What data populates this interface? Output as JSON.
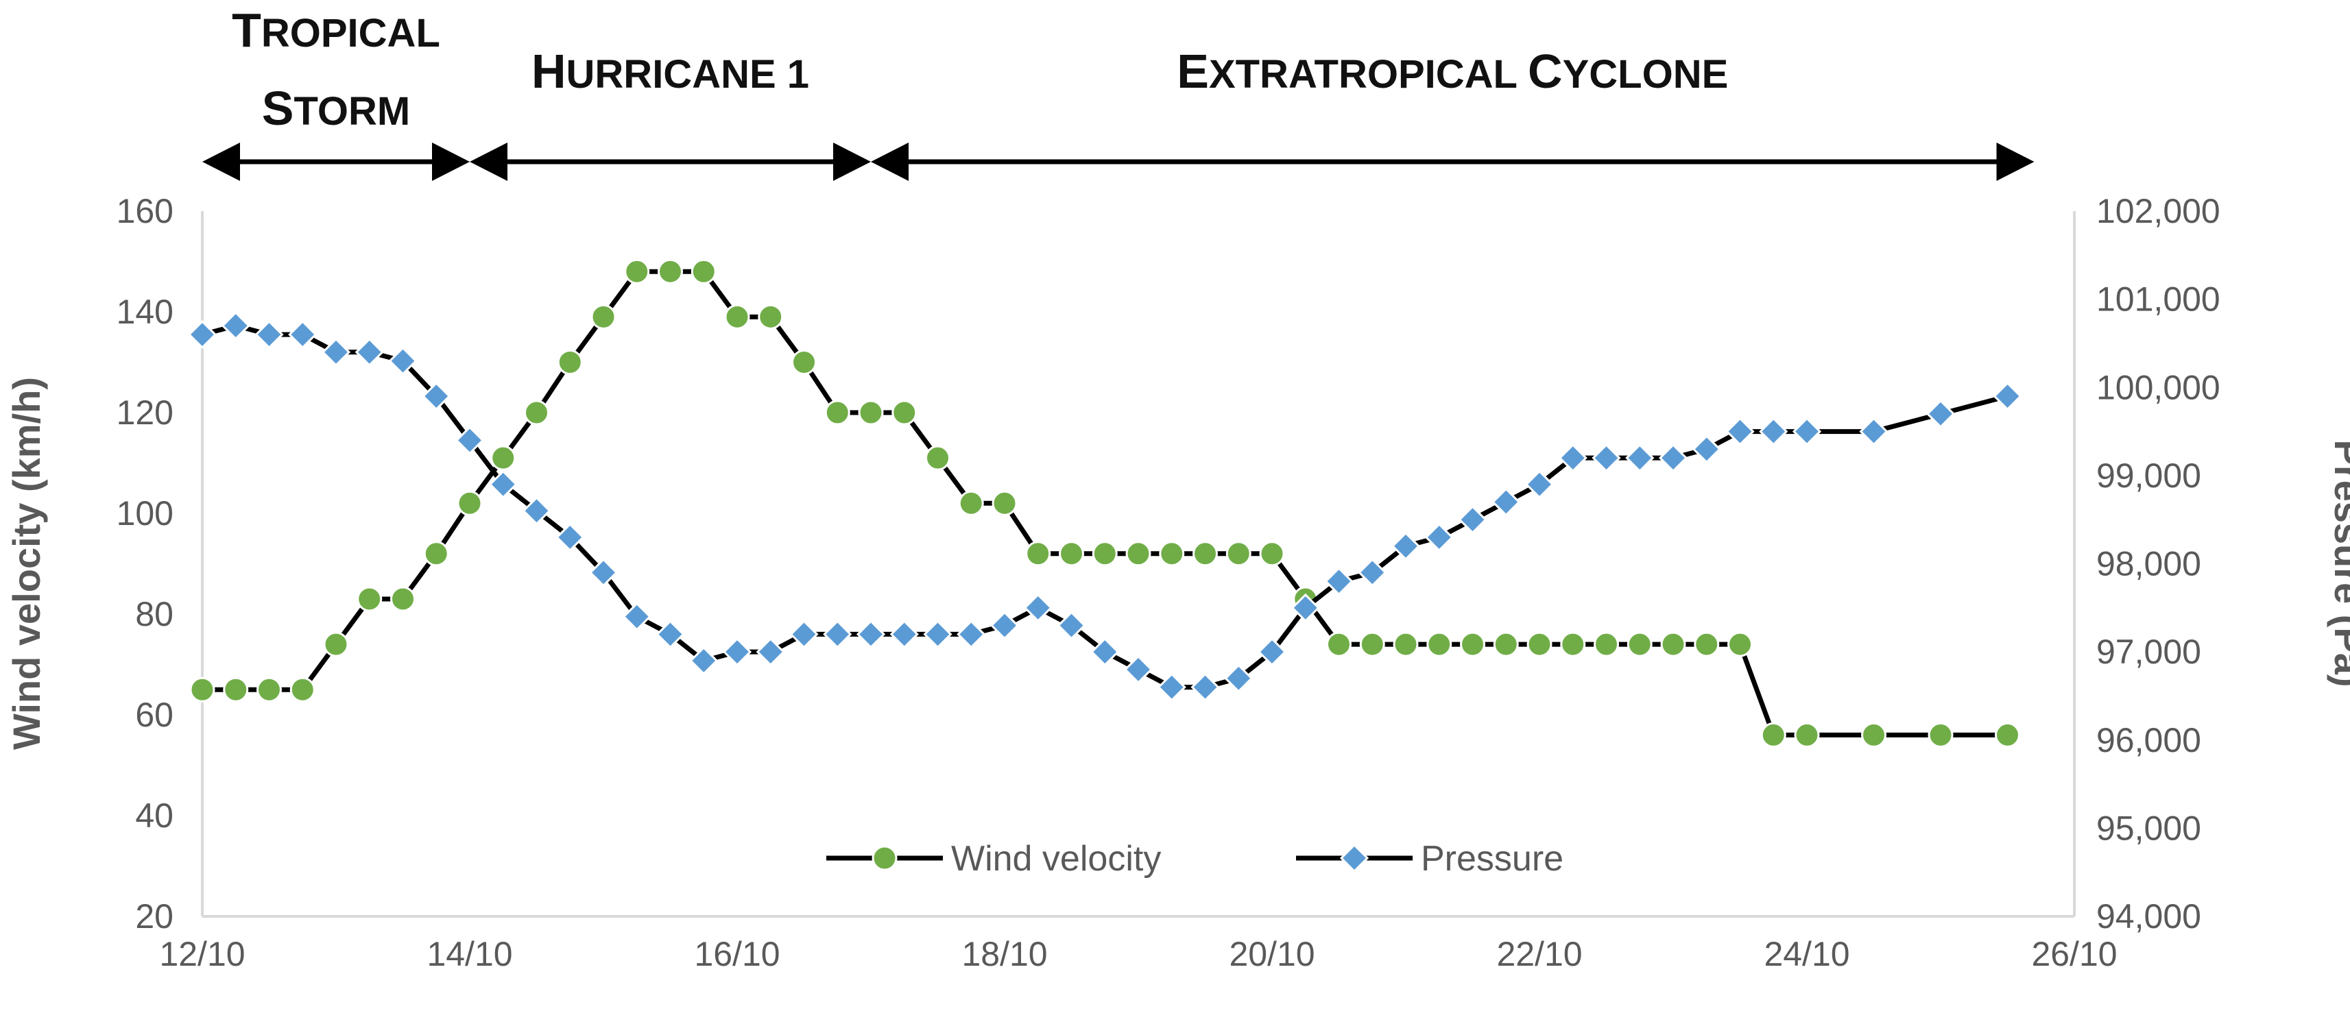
{
  "chart_data": {
    "type": "line",
    "title": "",
    "stages": [
      {
        "first": "T",
        "rest": "ROPICAL",
        "first2": "S",
        "rest2": "TORM",
        "from": 12.0,
        "to": 14.0
      },
      {
        "first": "H",
        "rest": "URRICANE 1",
        "from": 14.0,
        "to": 17.0
      },
      {
        "first": "E",
        "rest": "XTRATROPICAL ",
        "first2": "C",
        "rest2": "YCLONE",
        "from": 17.0,
        "to": 25.7
      }
    ],
    "x": {
      "label": "",
      "range": [
        12,
        26
      ],
      "ticks": [
        12,
        14,
        16,
        18,
        20,
        22,
        24,
        26
      ],
      "tick_labels": [
        "12/10",
        "14/10",
        "16/10",
        "18/10",
        "20/10",
        "22/10",
        "24/10",
        "26/10"
      ]
    },
    "y_left": {
      "label": "Wind velocity (km/h)",
      "range": [
        20,
        160
      ],
      "ticks": [
        20,
        40,
        60,
        80,
        100,
        120,
        140,
        160
      ],
      "tick_labels": [
        "20",
        "40",
        "60",
        "80",
        "100",
        "120",
        "140",
        "160"
      ]
    },
    "y_right": {
      "label": "Pressure (Pa)",
      "range": [
        94000,
        102000
      ],
      "ticks": [
        94000,
        95000,
        96000,
        97000,
        98000,
        99000,
        100000,
        101000,
        102000
      ],
      "tick_labels": [
        "94,000",
        "95,000",
        "96,000",
        "97,000",
        "98,000",
        "99,000",
        "100,000",
        "101,000",
        "102,000"
      ]
    },
    "legend": {
      "placement": "bottom-center"
    },
    "series": [
      {
        "name": "Wind velocity",
        "axis": "left",
        "marker": "circle",
        "color": "#70AD47",
        "line_color": "#000000",
        "points": [
          [
            12.0,
            65
          ],
          [
            12.25,
            65
          ],
          [
            12.5,
            65
          ],
          [
            12.75,
            65
          ],
          [
            13.0,
            74
          ],
          [
            13.25,
            83
          ],
          [
            13.5,
            83
          ],
          [
            13.75,
            92
          ],
          [
            14.0,
            102
          ],
          [
            14.25,
            111
          ],
          [
            14.5,
            120
          ],
          [
            14.75,
            130
          ],
          [
            15.0,
            139
          ],
          [
            15.25,
            148
          ],
          [
            15.5,
            148
          ],
          [
            15.75,
            148
          ],
          [
            16.0,
            139
          ],
          [
            16.25,
            139
          ],
          [
            16.5,
            130
          ],
          [
            16.75,
            120
          ],
          [
            17.0,
            120
          ],
          [
            17.25,
            120
          ],
          [
            17.5,
            111
          ],
          [
            17.75,
            102
          ],
          [
            18.0,
            102
          ],
          [
            18.25,
            92
          ],
          [
            18.5,
            92
          ],
          [
            18.75,
            92
          ],
          [
            19.0,
            92
          ],
          [
            19.25,
            92
          ],
          [
            19.5,
            92
          ],
          [
            19.75,
            92
          ],
          [
            20.0,
            92
          ],
          [
            20.25,
            83
          ],
          [
            20.5,
            74
          ],
          [
            20.75,
            74
          ],
          [
            21.0,
            74
          ],
          [
            21.25,
            74
          ],
          [
            21.5,
            74
          ],
          [
            21.75,
            74
          ],
          [
            22.0,
            74
          ],
          [
            22.25,
            74
          ],
          [
            22.5,
            74
          ],
          [
            22.75,
            74
          ],
          [
            23.0,
            74
          ],
          [
            23.25,
            74
          ],
          [
            23.5,
            74
          ],
          [
            23.75,
            56
          ],
          [
            24.0,
            56
          ],
          [
            24.5,
            56
          ],
          [
            25.0,
            56
          ],
          [
            25.5,
            56
          ]
        ]
      },
      {
        "name": "Pressure",
        "axis": "right",
        "marker": "diamond",
        "color": "#5B9BD5",
        "line_color": "#000000",
        "points": [
          [
            12.0,
            100600
          ],
          [
            12.25,
            100700
          ],
          [
            12.5,
            100600
          ],
          [
            12.75,
            100600
          ],
          [
            13.0,
            100400
          ],
          [
            13.25,
            100400
          ],
          [
            13.5,
            100300
          ],
          [
            13.75,
            99900
          ],
          [
            14.0,
            99400
          ],
          [
            14.25,
            98900
          ],
          [
            14.5,
            98600
          ],
          [
            14.75,
            98300
          ],
          [
            15.0,
            97900
          ],
          [
            15.25,
            97400
          ],
          [
            15.5,
            97200
          ],
          [
            15.75,
            96900
          ],
          [
            16.0,
            97000
          ],
          [
            16.25,
            97000
          ],
          [
            16.5,
            97200
          ],
          [
            16.75,
            97200
          ],
          [
            17.0,
            97200
          ],
          [
            17.25,
            97200
          ],
          [
            17.5,
            97200
          ],
          [
            17.75,
            97200
          ],
          [
            18.0,
            97300
          ],
          [
            18.25,
            97500
          ],
          [
            18.5,
            97300
          ],
          [
            18.75,
            97000
          ],
          [
            19.0,
            96800
          ],
          [
            19.25,
            96600
          ],
          [
            19.5,
            96600
          ],
          [
            19.75,
            96700
          ],
          [
            20.0,
            97000
          ],
          [
            20.25,
            97500
          ],
          [
            20.5,
            97800
          ],
          [
            20.75,
            97900
          ],
          [
            21.0,
            98200
          ],
          [
            21.25,
            98300
          ],
          [
            21.5,
            98500
          ],
          [
            21.75,
            98700
          ],
          [
            22.0,
            98900
          ],
          [
            22.25,
            99200
          ],
          [
            22.5,
            99200
          ],
          [
            22.75,
            99200
          ],
          [
            23.0,
            99200
          ],
          [
            23.25,
            99300
          ],
          [
            23.5,
            99500
          ],
          [
            23.75,
            99500
          ],
          [
            24.0,
            99500
          ],
          [
            24.5,
            99500
          ],
          [
            25.0,
            99700
          ],
          [
            25.5,
            99900
          ]
        ]
      }
    ]
  }
}
